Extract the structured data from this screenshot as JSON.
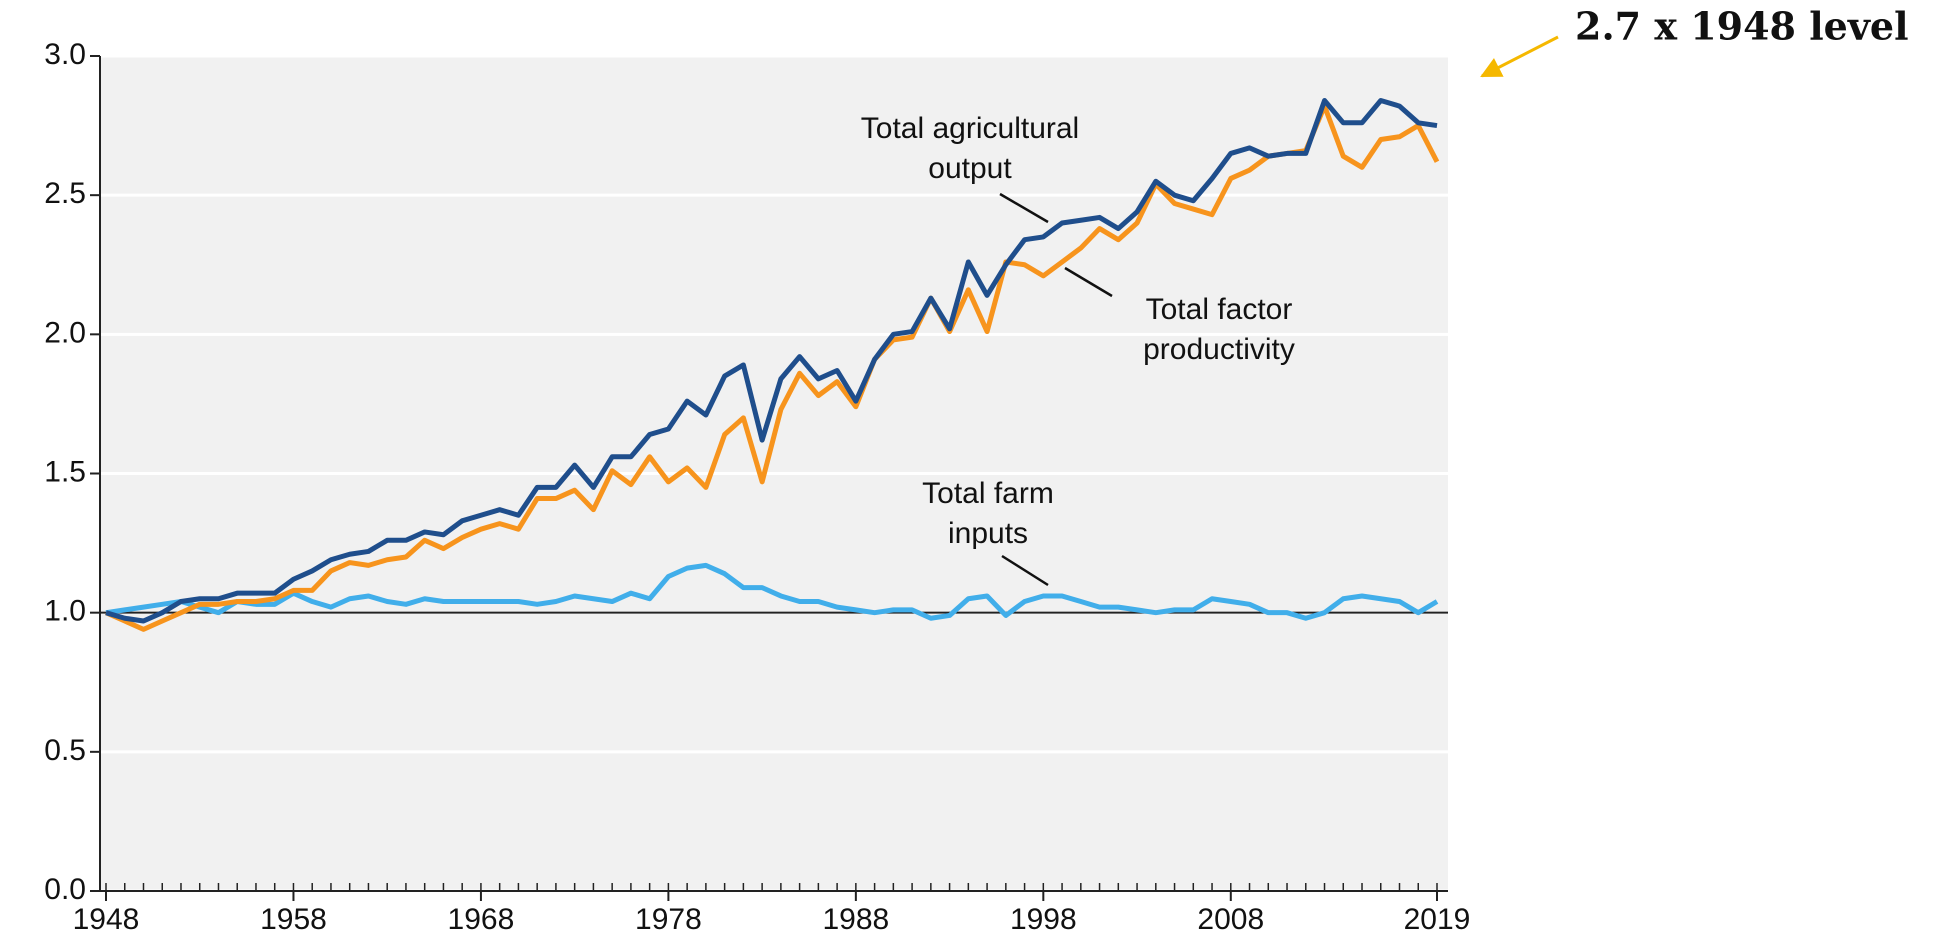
{
  "chart_data": {
    "type": "line",
    "x": [
      1948,
      1949,
      1950,
      1951,
      1952,
      1953,
      1954,
      1955,
      1956,
      1957,
      1958,
      1959,
      1960,
      1961,
      1962,
      1963,
      1964,
      1965,
      1966,
      1967,
      1968,
      1969,
      1970,
      1971,
      1972,
      1973,
      1974,
      1975,
      1976,
      1977,
      1978,
      1979,
      1980,
      1981,
      1982,
      1983,
      1984,
      1985,
      1986,
      1987,
      1988,
      1989,
      1990,
      1991,
      1992,
      1993,
      1994,
      1995,
      1996,
      1997,
      1998,
      1999,
      2000,
      2001,
      2002,
      2003,
      2004,
      2005,
      2006,
      2007,
      2008,
      2009,
      2010,
      2011,
      2012,
      2013,
      2014,
      2015,
      2016,
      2017,
      2018,
      2019
    ],
    "series": [
      {
        "name": "Total farm inputs",
        "color": "#41aeea",
        "values": [
          1.0,
          1.01,
          1.02,
          1.03,
          1.04,
          1.02,
          1.0,
          1.04,
          1.03,
          1.03,
          1.07,
          1.04,
          1.02,
          1.05,
          1.06,
          1.04,
          1.03,
          1.05,
          1.04,
          1.04,
          1.04,
          1.04,
          1.04,
          1.03,
          1.04,
          1.06,
          1.05,
          1.04,
          1.07,
          1.05,
          1.13,
          1.16,
          1.17,
          1.14,
          1.09,
          1.09,
          1.06,
          1.04,
          1.04,
          1.02,
          1.01,
          1.0,
          1.01,
          1.01,
          0.98,
          0.99,
          1.05,
          1.06,
          0.99,
          1.04,
          1.06,
          1.06,
          1.04,
          1.02,
          1.02,
          1.01,
          1.0,
          1.01,
          1.01,
          1.05,
          1.04,
          1.03,
          1.0,
          1.0,
          0.98,
          1.0,
          1.05,
          1.06,
          1.05,
          1.04,
          1.0,
          1.04
        ]
      },
      {
        "name": "Total factor productivity",
        "color": "#f7941d",
        "values": [
          1.0,
          0.97,
          0.94,
          0.97,
          1.0,
          1.03,
          1.03,
          1.04,
          1.04,
          1.05,
          1.08,
          1.08,
          1.15,
          1.18,
          1.17,
          1.19,
          1.2,
          1.26,
          1.23,
          1.27,
          1.3,
          1.32,
          1.3,
          1.41,
          1.41,
          1.44,
          1.37,
          1.51,
          1.46,
          1.56,
          1.47,
          1.52,
          1.45,
          1.64,
          1.7,
          1.47,
          1.73,
          1.86,
          1.78,
          1.83,
          1.74,
          1.91,
          1.98,
          1.99,
          2.13,
          2.01,
          2.16,
          2.01,
          2.26,
          2.25,
          2.21,
          2.26,
          2.31,
          2.38,
          2.34,
          2.4,
          2.54,
          2.47,
          2.45,
          2.43,
          2.56,
          2.59,
          2.64,
          2.65,
          2.66,
          2.82,
          2.64,
          2.6,
          2.7,
          2.71,
          2.75,
          2.62
        ]
      },
      {
        "name": "Total agricultural output",
        "color": "#1f4e8c",
        "values": [
          1.0,
          0.98,
          0.97,
          1.0,
          1.04,
          1.05,
          1.05,
          1.07,
          1.07,
          1.07,
          1.12,
          1.15,
          1.19,
          1.21,
          1.22,
          1.26,
          1.26,
          1.29,
          1.28,
          1.33,
          1.35,
          1.37,
          1.35,
          1.45,
          1.45,
          1.53,
          1.45,
          1.56,
          1.56,
          1.64,
          1.66,
          1.76,
          1.71,
          1.85,
          1.89,
          1.62,
          1.84,
          1.92,
          1.84,
          1.87,
          1.76,
          1.91,
          2.0,
          2.01,
          2.13,
          2.02,
          2.26,
          2.14,
          2.25,
          2.34,
          2.35,
          2.4,
          2.41,
          2.42,
          2.38,
          2.44,
          2.55,
          2.5,
          2.48,
          2.56,
          2.65,
          2.67,
          2.64,
          2.65,
          2.65,
          2.84,
          2.76,
          2.76,
          2.84,
          2.82,
          2.76,
          2.75
        ]
      }
    ],
    "xlim": [
      1948,
      2019
    ],
    "xticks": [
      1948,
      1958,
      1968,
      1978,
      1988,
      1998,
      2008,
      2019
    ],
    "ylim": [
      0,
      3
    ],
    "yticks": [
      {
        "value": 0,
        "label": "0.0"
      },
      {
        "value": 0.5,
        "label": "0.5"
      },
      {
        "value": 1,
        "label": "1.0"
      },
      {
        "value": 1.5,
        "label": "1.5"
      },
      {
        "value": 2,
        "label": "2.0"
      },
      {
        "value": 2.5,
        "label": "2.5"
      },
      {
        "value": 3,
        "label": "3.0"
      }
    ],
    "baseline": 1,
    "grid": true,
    "annotations": [
      {
        "lines": [
          "Total agricultural",
          "output"
        ]
      },
      {
        "lines": [
          "Total factor",
          "productivity"
        ]
      },
      {
        "lines": [
          "Total farm",
          "inputs"
        ]
      }
    ],
    "callout": "2.7 x 1948 level"
  }
}
